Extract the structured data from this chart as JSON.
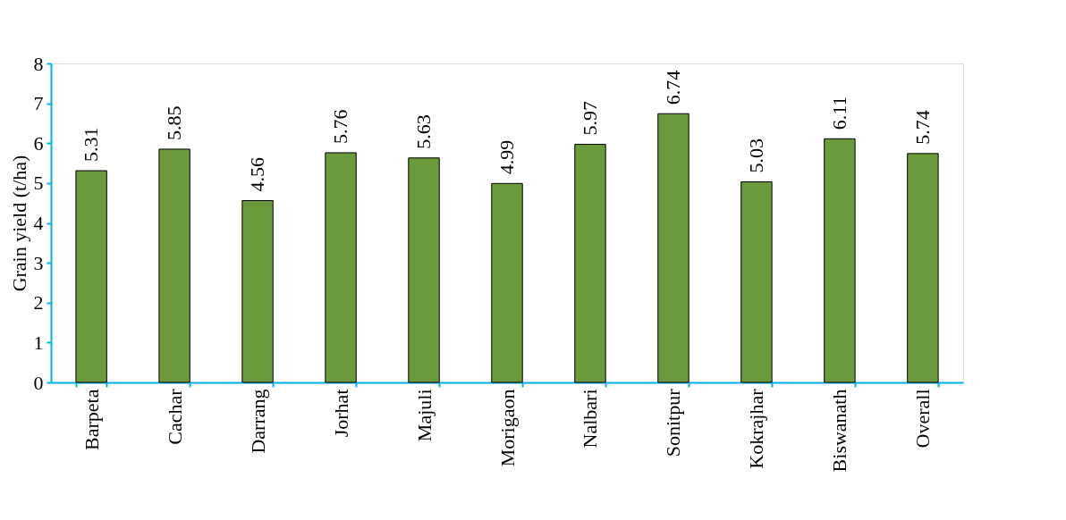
{
  "chart_data": {
    "type": "bar",
    "ylabel": "Grain yield (t/ha)",
    "categories": [
      "Barpeta",
      "Cachar",
      "Darrang",
      "Jorhat",
      "Majuli",
      "Morigaon",
      "Nalbari",
      "Sonitpur",
      "Kokrajhar",
      "Biswanath",
      "Overall"
    ],
    "values": [
      5.31,
      5.85,
      4.56,
      5.76,
      5.63,
      4.99,
      5.97,
      6.74,
      5.03,
      6.11,
      5.74
    ],
    "color": "#6a9a3c",
    "ylim": [
      0,
      8
    ],
    "yticks": [
      0,
      1,
      2,
      3,
      4,
      5,
      6,
      7,
      8
    ],
    "grid": false,
    "data_labels": true
  }
}
